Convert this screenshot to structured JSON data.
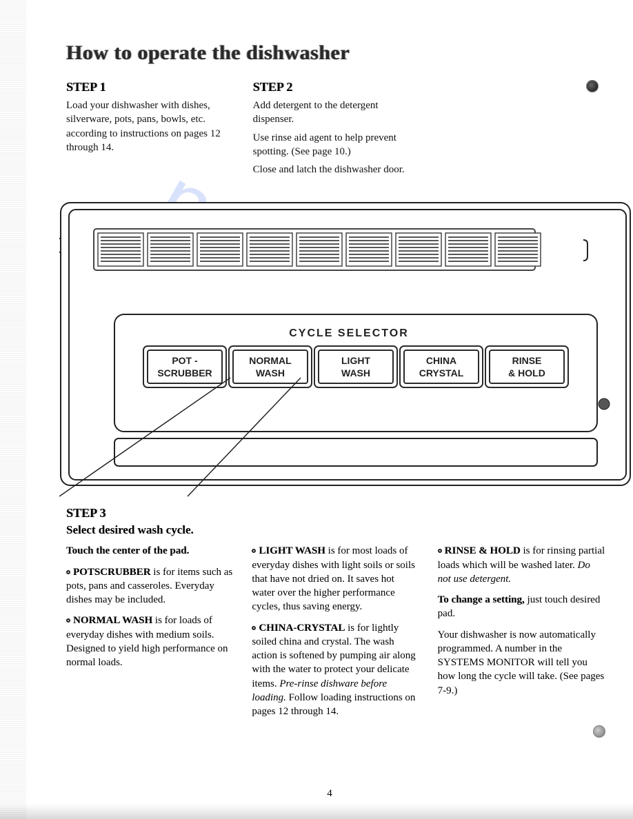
{
  "title": "How to operate the dishwasher",
  "watermark_text": "nualsli",
  "step1": {
    "head": "STEP 1",
    "body": "Load your dishwasher with dishes, silverware, pots, pans, bowls, etc. according to instructions on pages 12 through 14."
  },
  "step2": {
    "head": "STEP 2",
    "p1": "Add detergent to the detergent dispenser.",
    "p2": "Use rinse aid agent to help prevent spotting. (See page 10.)",
    "p3": "Close and latch the dishwasher door."
  },
  "diagram": {
    "panel_label": "CYCLE SELECTOR",
    "buttons": [
      {
        "line1": "POT -",
        "line2": "SCRUBBER"
      },
      {
        "line1": "NORMAL",
        "line2": "WASH"
      },
      {
        "line1": "LIGHT",
        "line2": "WASH"
      },
      {
        "line1": "CHINA",
        "line2": "CRYSTAL"
      },
      {
        "line1": "RINSE",
        "line2": "& HOLD"
      }
    ],
    "colors": {
      "stroke": "#222222",
      "panel_fill": "#ffffff",
      "hatch": "#555555",
      "button_stroke": "#2a2a2a"
    }
  },
  "step3": {
    "head": "STEP 3",
    "sub": "Select desired wash cycle.",
    "col1": {
      "touch": "Touch the center of the pad.",
      "pot_b": "POTSCRUBBER",
      "pot_t": " is for items such as pots, pans and casseroles. Everyday dishes may be included.",
      "norm_b": "NORMAL WASH",
      "norm_t": " is for loads of everyday dishes with medium soils. Designed to yield high performance on normal loads."
    },
    "col2": {
      "light_b": "LIGHT WASH",
      "light_t": " is for most loads of everyday dishes with light soils or soils that have not dried on. It saves hot water over the higher performance cycles, thus saving energy.",
      "china_b": "CHINA-CRYSTAL",
      "china_t": " is for lightly soiled china and crystal. The wash action is softened by pumping air along with the water to protect your delicate items. ",
      "china_i": "Pre-rinse dishware before loading.",
      "china_t2": " Follow loading instructions on pages 12 through 14."
    },
    "col3": {
      "rinse_b": "RINSE & HOLD",
      "rinse_t": " is for rinsing partial loads which will be washed later. ",
      "rinse_i": "Do not use detergent.",
      "change_b": "To change a setting,",
      "change_t": " just touch desired pad.",
      "auto": "Your dishwasher is now automatically programmed. A number in the SYSTEMS MONITOR will tell you how long the cycle will take. (See pages 7-9.)"
    }
  },
  "page_number": "4"
}
